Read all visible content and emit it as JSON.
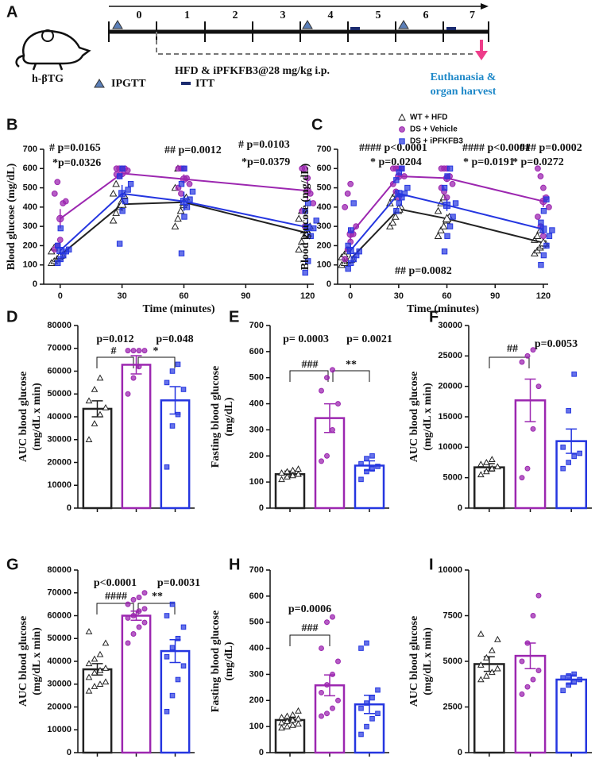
{
  "schematic": {
    "panel": "A",
    "model": "h-βTG",
    "days": [
      "0",
      "1",
      "2",
      "3",
      "4",
      "5",
      "6",
      "7"
    ],
    "treatment": "HFD & iPFKFB3@28 mg/kg i.p.",
    "ipgtt": "IPGTT",
    "itt": "ITT",
    "endpoint": [
      "Euthanasia &",
      "organ harvest"
    ]
  },
  "chart_data": [
    {
      "panel": "B",
      "type": "line",
      "ylabel": "Blood glucose  (mg/dL)",
      "xlabel": "Time (minutes)",
      "x": [
        0,
        30,
        60,
        120
      ],
      "xlim": [
        -8,
        123
      ],
      "xticks": [
        0,
        30,
        60,
        90,
        120
      ],
      "ylim": [
        0,
        700
      ],
      "yticks": [
        0,
        100,
        200,
        300,
        400,
        500,
        600,
        700
      ],
      "series": [
        {
          "color": "#222222",
          "marker": "triangle",
          "values": [
            150,
            415,
            425,
            265
          ],
          "errors": [
            12,
            35,
            40,
            30
          ],
          "points": [
            [
              110,
              120,
              130,
              140,
              150,
              170,
              190
            ],
            [
              330,
              370,
              400,
              430,
              460,
              470,
              520
            ],
            [
              300,
              340,
              380,
              410,
              450,
              500,
              600
            ],
            [
              180,
              220,
              250,
              280,
              300,
              340,
              380
            ]
          ]
        },
        {
          "color": "#9c27b0",
          "marker": "circle",
          "values": [
            340,
            575,
            545,
            485
          ],
          "errors": [
            50,
            20,
            25,
            50
          ],
          "points": [
            [
              180,
              200,
              230,
              420,
              430,
              470,
              530
            ],
            [
              600,
              600,
              600,
              600,
              590,
              570,
              560
            ],
            [
              600,
              600,
              600,
              550,
              520,
              500,
              470
            ],
            [
              600,
              600,
              550,
              470,
              420,
              380,
              300
            ]
          ]
        },
        {
          "color": "#2536e0",
          "marker": "square",
          "values": [
            175,
            470,
            430,
            295
          ],
          "errors": [
            22,
            45,
            50,
            45
          ],
          "points": [
            [
              110,
              130,
              150,
              170,
              180,
              200,
              290
            ],
            [
              210,
              380,
              430,
              490,
              520,
              560,
              600
            ],
            [
              160,
              350,
              400,
              440,
              480,
              520,
              600
            ],
            [
              60,
              120,
              250,
              290,
              330,
              380,
              420
            ]
          ]
        }
      ],
      "annotations": [
        "# p=0.0165",
        "*p=0.0326",
        "## p=0.0012",
        "# p=0.0103",
        "*p=0.0379"
      ]
    },
    {
      "panel": "C",
      "type": "line",
      "ylabel": "Blood glucose  (mg/dL)",
      "xlabel": "Time (minutes)",
      "x": [
        0,
        30,
        60,
        120
      ],
      "xlim": [
        -8,
        123
      ],
      "xticks": [
        0,
        30,
        60,
        90,
        120
      ],
      "ylim": [
        0,
        700
      ],
      "yticks": [
        0,
        100,
        200,
        300,
        400,
        500,
        600,
        700
      ],
      "legend": "upper right",
      "series": [
        {
          "name": "WT + HFD",
          "color": "#222222",
          "marker": "triangle",
          "values": [
            130,
            390,
            340,
            215
          ],
          "errors": [
            8,
            15,
            20,
            10
          ],
          "points": [
            [
              100,
              110,
              120,
              125,
              130,
              140,
              155,
              170
            ],
            [
              300,
              320,
              350,
              380,
              400,
              420,
              450,
              470
            ],
            [
              250,
              280,
              300,
              330,
              350,
              380,
              420,
              450
            ],
            [
              160,
              175,
              190,
              200,
              210,
              230,
              250,
              280
            ]
          ]
        },
        {
          "name": "DS + Vehicle",
          "color": "#9c27b0",
          "marker": "circle",
          "values": [
            260,
            560,
            550,
            430
          ],
          "errors": [
            35,
            20,
            20,
            30
          ],
          "points": [
            [
              130,
              180,
              220,
              260,
              300,
              400,
              470,
              520
            ],
            [
              600,
              600,
              600,
              600,
              560,
              520,
              480,
              450
            ],
            [
              600,
              600,
              600,
              560,
              520,
              500,
              480,
              450
            ],
            [
              600,
              560,
              500,
              450,
              400,
              350,
              300,
              250
            ]
          ]
        },
        {
          "name": "DS + iPFKFB3",
          "color": "#2536e0",
          "marker": "square",
          "values": [
            175,
            470,
            410,
            285
          ],
          "errors": [
            25,
            20,
            30,
            25
          ],
          "points": [
            [
              80,
              110,
              130,
              150,
              170,
              200,
              280,
              420
            ],
            [
              380,
              420,
              450,
              470,
              500,
              540,
              580,
              600
            ],
            [
              170,
              250,
              300,
              350,
              420,
              500,
              560,
              600
            ],
            [
              100,
              150,
              200,
              250,
              280,
              320,
              380,
              440
            ]
          ]
        }
      ],
      "annotations": [
        "#### p<0.0001",
        "* p=0.0204",
        "#### p<0.0001",
        "* p=0.0191",
        "### p=0.0002",
        "* p=0.0272",
        "## p=0.0082"
      ]
    },
    {
      "panel": "D",
      "type": "bar",
      "ylabel": [
        "AUC blood glucose",
        "(mg/dL x min)"
      ],
      "categories": [
        null,
        null,
        null
      ],
      "colors": [
        "#222222",
        "#9c27b0",
        "#2536e0"
      ],
      "markers": [
        "triangle",
        "circle",
        "square"
      ],
      "ylim": [
        0,
        80000
      ],
      "yticks": [
        0,
        10000,
        20000,
        30000,
        40000,
        50000,
        60000,
        70000,
        80000
      ],
      "values": [
        43500,
        62800,
        47200
      ],
      "errors": [
        3500,
        4000,
        6000
      ],
      "points": [
        [
          30000,
          37000,
          41000,
          44000,
          47000,
          52000,
          57000
        ],
        [
          50000,
          57000,
          62000,
          69000,
          69000,
          69000,
          69000
        ],
        [
          18000,
          36000,
          41000,
          52000,
          55000,
          60000,
          63000
        ]
      ],
      "annotations": [
        "p=0.012",
        "#",
        "p=0.048",
        "*"
      ]
    },
    {
      "panel": "E",
      "type": "bar",
      "ylabel": [
        "Fasting blood glucose",
        "(mg/dL)"
      ],
      "categories": [
        null,
        null,
        null
      ],
      "colors": [
        "#222222",
        "#9c27b0",
        "#2536e0"
      ],
      "markers": [
        "triangle",
        "circle",
        "square"
      ],
      "ylim": [
        0,
        700
      ],
      "yticks": [
        0,
        100,
        200,
        300,
        400,
        500,
        600,
        700
      ],
      "values": [
        130,
        345,
        163
      ],
      "errors": [
        12,
        55,
        18
      ],
      "points": [
        [
          110,
          120,
          125,
          130,
          135,
          140,
          145,
          150
        ],
        [
          180,
          200,
          300,
          400,
          450,
          500,
          530
        ],
        [
          110,
          140,
          150,
          160,
          170,
          190,
          200
        ]
      ],
      "annotations": [
        "p= 0.0003",
        "###",
        "p= 0.0021",
        "**"
      ]
    },
    {
      "panel": "F",
      "type": "bar",
      "ylabel": [
        "AUC blood glucose",
        "(mg/dL x min)"
      ],
      "categories": [
        null,
        null,
        null
      ],
      "colors": [
        "#222222",
        "#9c27b0",
        "#2536e0"
      ],
      "markers": [
        "triangle",
        "circle",
        "square"
      ],
      "ylim": [
        0,
        30000
      ],
      "yticks": [
        0,
        5000,
        10000,
        15000,
        20000,
        25000,
        30000
      ],
      "values": [
        6700,
        17700,
        11000
      ],
      "errors": [
        600,
        3500,
        2000
      ],
      "points": [
        [
          5500,
          6000,
          6500,
          6800,
          7200,
          7500,
          8000
        ],
        [
          5000,
          6500,
          13000,
          20000,
          24000,
          25000,
          26000
        ],
        [
          6500,
          7500,
          8500,
          9000,
          10000,
          16000,
          22000
        ]
      ],
      "annotations": [
        "##",
        "p=0.0053"
      ]
    },
    {
      "panel": "G",
      "type": "bar",
      "ylabel": [
        "AUC blood glucose",
        "(mg/dL x min)"
      ],
      "categories": [
        null,
        null,
        null
      ],
      "colors": [
        "#222222",
        "#9c27b0",
        "#2536e0"
      ],
      "markers": [
        "triangle",
        "circle",
        "square"
      ],
      "ylim": [
        0,
        80000
      ],
      "yticks": [
        0,
        10000,
        20000,
        30000,
        40000,
        50000,
        60000,
        70000,
        80000
      ],
      "values": [
        36500,
        60000,
        44500
      ],
      "errors": [
        2500,
        2000,
        5000
      ],
      "points": [
        [
          27000,
          29000,
          30000,
          31000,
          33000,
          35000,
          36000,
          37000,
          39000,
          41000,
          43000,
          48000,
          53000
        ],
        [
          48000,
          52000,
          55000,
          57000,
          59000,
          60000,
          62000,
          63000,
          65000,
          67000,
          68000,
          70000
        ],
        [
          18000,
          25000,
          32000,
          38000,
          42000,
          46000,
          50000,
          55000,
          60000,
          65000
        ]
      ],
      "annotations": [
        "p<0.0001",
        "####",
        "p=0.0031",
        "**"
      ]
    },
    {
      "panel": "H",
      "type": "bar",
      "ylabel": [
        "Fasting blood glucose",
        "(mg/dL)"
      ],
      "categories": [
        null,
        null,
        null
      ],
      "colors": [
        "#222222",
        "#9c27b0",
        "#2536e0"
      ],
      "markers": [
        "triangle",
        "circle",
        "square"
      ],
      "ylim": [
        0,
        700
      ],
      "yticks": [
        0,
        100,
        200,
        300,
        400,
        500,
        600,
        700
      ],
      "values": [
        125,
        258,
        185
      ],
      "errors": [
        8,
        40,
        35
      ],
      "points": [
        [
          95,
          100,
          105,
          110,
          115,
          120,
          125,
          130,
          135,
          140,
          145,
          160
        ],
        [
          140,
          150,
          170,
          200,
          230,
          260,
          300,
          350,
          400,
          500,
          520
        ],
        [
          70,
          100,
          130,
          150,
          170,
          190,
          210,
          240,
          400,
          420
        ]
      ],
      "annotations": [
        "p=0.0006",
        "###"
      ]
    },
    {
      "panel": "I",
      "type": "bar",
      "ylabel": [
        "AUC blood glucose",
        "(mg/dL x min)"
      ],
      "categories": [
        null,
        null,
        null
      ],
      "colors": [
        "#222222",
        "#9c27b0",
        "#2536e0"
      ],
      "markers": [
        "triangle",
        "circle",
        "square"
      ],
      "ylim": [
        0,
        10000
      ],
      "yticks": [
        0,
        2500,
        5000,
        7500,
        10000
      ],
      "values": [
        4850,
        5300,
        4000
      ],
      "errors": [
        400,
        700,
        250
      ],
      "points": [
        [
          4000,
          4200,
          4400,
          4600,
          4800,
          5200,
          5600,
          6200,
          6500
        ],
        [
          3200,
          3600,
          4000,
          4500,
          5000,
          6000,
          7500,
          8600
        ],
        [
          3400,
          3700,
          3900,
          4000,
          4100,
          4200,
          4300
        ]
      ],
      "annotations": []
    }
  ]
}
